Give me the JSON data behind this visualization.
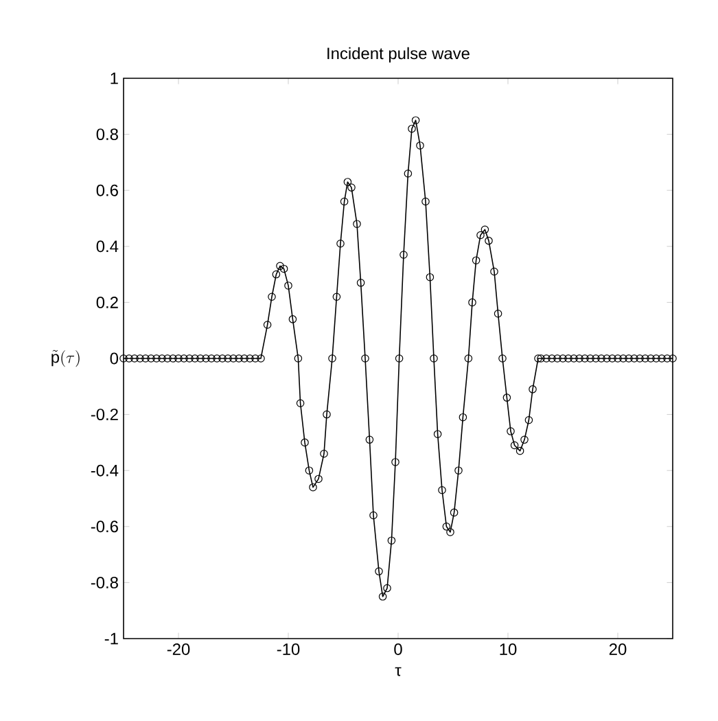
{
  "chart_data": {
    "type": "line",
    "title": "Incident pulse wave",
    "xlabel": "τ",
    "ylabel": "\\tilde{\\mathrm{p}}(\\tau)",
    "xlim": [
      -25,
      25
    ],
    "ylim": [
      -1,
      1
    ],
    "xticks": [
      -20,
      -10,
      0,
      10,
      20
    ],
    "yticks": [
      -1,
      -0.8,
      -0.6,
      -0.4,
      -0.2,
      0,
      0.2,
      0.4,
      0.6,
      0.8,
      1
    ],
    "grid": false,
    "marker": "circle",
    "line_style": "solid",
    "series": [
      {
        "color": "#000000",
        "x": [
          -25,
          -24.5,
          -24,
          -23.5,
          -23,
          -22.5,
          -22,
          -21.5,
          -21,
          -20.5,
          -20,
          -19.5,
          -19,
          -18.5,
          -18,
          -17.5,
          -17,
          -16.5,
          -16,
          -15.5,
          -15,
          -14.5,
          -14,
          -13.5,
          -13,
          -12.5,
          -11.9,
          -11.5,
          -11.1,
          -10.75,
          -10.4,
          -10.0,
          -9.6,
          -9.1,
          -8.9,
          -8.5,
          -8.1,
          -7.75,
          -7.25,
          -6.75,
          -6.5,
          -6.0,
          -5.6,
          -5.25,
          -4.9,
          -4.6,
          -4.25,
          -3.75,
          -3.4,
          -3.0,
          -2.6,
          -2.25,
          -1.75,
          -1.4,
          -1.0,
          -0.6,
          -0.25,
          0.1,
          0.5,
          0.9,
          1.25,
          1.6,
          2.0,
          2.5,
          2.9,
          3.25,
          3.6,
          4.0,
          4.4,
          4.75,
          5.1,
          5.5,
          5.9,
          6.4,
          6.75,
          7.1,
          7.5,
          7.9,
          8.25,
          8.75,
          9.1,
          9.5,
          9.9,
          10.25,
          10.6,
          11.1,
          11.5,
          11.9,
          12.25,
          12.75,
          13,
          13.5,
          14,
          14.5,
          15,
          15.5,
          16,
          16.5,
          17,
          17.5,
          18,
          18.5,
          19,
          19.5,
          20,
          20.5,
          21,
          21.5,
          22,
          22.5,
          23,
          23.5,
          24,
          24.5,
          25
        ],
        "values": [
          0,
          0,
          0,
          0,
          0,
          0,
          0,
          0,
          0,
          0,
          0,
          0,
          0,
          0,
          0,
          0,
          0,
          0,
          0,
          0,
          0,
          0,
          0,
          0,
          0,
          0,
          0.12,
          0.22,
          0.3,
          0.33,
          0.32,
          0.26,
          0.14,
          0,
          -0.16,
          -0.3,
          -0.4,
          -0.46,
          -0.43,
          -0.34,
          -0.2,
          0,
          0.22,
          0.41,
          0.56,
          0.63,
          0.61,
          0.48,
          0.27,
          0,
          -0.29,
          -0.56,
          -0.76,
          -0.85,
          -0.82,
          -0.65,
          -0.37,
          0,
          0.37,
          0.66,
          0.82,
          0.85,
          0.76,
          0.56,
          0.29,
          0,
          -0.27,
          -0.47,
          -0.6,
          -0.62,
          -0.55,
          -0.4,
          -0.21,
          0,
          0.2,
          0.35,
          0.44,
          0.46,
          0.42,
          0.31,
          0.16,
          0,
          -0.14,
          -0.26,
          -0.31,
          -0.33,
          -0.29,
          -0.22,
          -0.11,
          0,
          0,
          0,
          0,
          0,
          0,
          0,
          0,
          0,
          0,
          0,
          0,
          0,
          0,
          0,
          0,
          0,
          0,
          0,
          0,
          0,
          0,
          0,
          0,
          0,
          0
        ]
      }
    ]
  }
}
